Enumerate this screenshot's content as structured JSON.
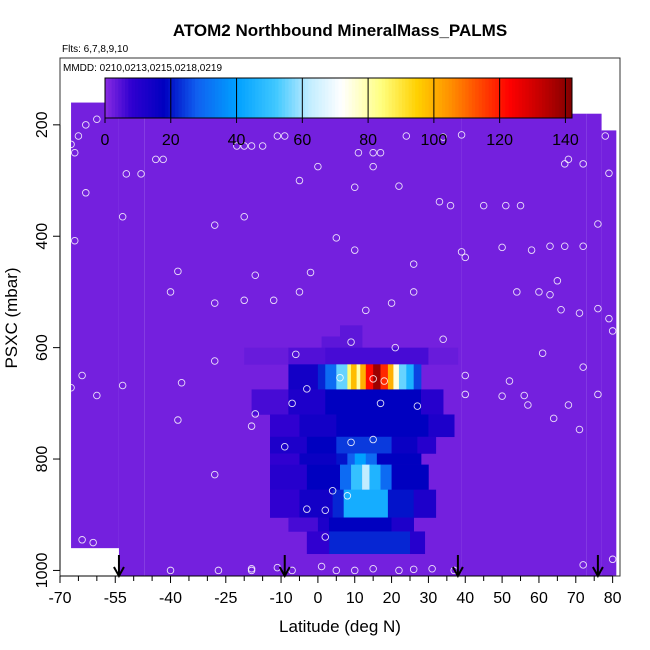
{
  "chart_data": {
    "type": "heatmap",
    "title": "ATOM2 Northbound MineralMass_PALMS",
    "subtitle_flights": "Flts: 6,7,8,9,10",
    "subtitle_dates": "MMDD: 0210,0213,0215,0218,0219",
    "xlabel": "Latitude (deg N)",
    "ylabel": "PSXC (mbar)",
    "xlim": [
      -70,
      82
    ],
    "ylim": [
      1010,
      80
    ],
    "x_ticks": [
      -70,
      -55,
      -40,
      -25,
      -10,
      0,
      10,
      20,
      30,
      40,
      50,
      60,
      70,
      80
    ],
    "x_tick_labels": [
      "-70",
      "-55",
      "-40",
      "-25",
      "-10",
      "0",
      "10",
      "20",
      "30",
      "40",
      "50",
      "60",
      "70",
      "80"
    ],
    "x_minor_ticks": [
      -65,
      -60,
      -50,
      -45,
      -35,
      -30,
      -20,
      -15,
      -5,
      5,
      15,
      25,
      35,
      45,
      55,
      65,
      75
    ],
    "y_ticks": [
      200,
      400,
      600,
      800,
      1000
    ],
    "y_tick_labels": [
      "200",
      "400",
      "600",
      "800",
      "1000"
    ],
    "colorbar": {
      "min": 0,
      "max": 142,
      "ticks": [
        0,
        20,
        40,
        60,
        80,
        100,
        120,
        140
      ],
      "tick_labels": [
        "0",
        "20",
        "40",
        "60",
        "80",
        "100",
        "120",
        "140"
      ],
      "stops": [
        {
          "v": 0,
          "c": "#8a2be2"
        },
        {
          "v": 8,
          "c": "#3000d0"
        },
        {
          "v": 18,
          "c": "#0000c0"
        },
        {
          "v": 28,
          "c": "#1060f0"
        },
        {
          "v": 40,
          "c": "#00a0ff"
        },
        {
          "v": 52,
          "c": "#40c8ff"
        },
        {
          "v": 62,
          "c": "#c0ecff"
        },
        {
          "v": 72,
          "c": "#ffffff"
        },
        {
          "v": 84,
          "c": "#ffff80"
        },
        {
          "v": 95,
          "c": "#ffd000"
        },
        {
          "v": 105,
          "c": "#ff9000"
        },
        {
          "v": 115,
          "c": "#ff4000"
        },
        {
          "v": 123,
          "c": "#ff0000"
        },
        {
          "v": 133,
          "c": "#c00000"
        },
        {
          "v": 142,
          "c": "#800000"
        }
      ]
    },
    "background_value": 2,
    "coverage": [
      {
        "x0": -67,
        "x1": -54,
        "y0": 160,
        "y1": 960
      },
      {
        "x0": -54,
        "x1": -47,
        "y0": 160,
        "y1": 1010
      },
      {
        "x0": -47,
        "x1": 39,
        "y0": 160,
        "y1": 1010
      },
      {
        "x0": 39,
        "x1": 73,
        "y0": 180,
        "y1": 1010
      },
      {
        "x0": 73,
        "x1": 77,
        "y0": 180,
        "y1": 1010
      },
      {
        "x0": 77,
        "x1": 81,
        "y0": 210,
        "y1": 1010
      }
    ],
    "cells": [
      {
        "x0": 6,
        "x1": 12,
        "y0": 560,
        "y1": 600,
        "v": 4
      },
      {
        "x0": 1,
        "x1": 6,
        "y0": 580,
        "y1": 600,
        "v": 4
      },
      {
        "x0": -20,
        "x1": -8,
        "y0": 600,
        "y1": 630,
        "v": 3
      },
      {
        "x0": -8,
        "x1": 2,
        "y0": 600,
        "y1": 630,
        "v": 5
      },
      {
        "x0": 2,
        "x1": 30,
        "y0": 600,
        "y1": 630,
        "v": 6
      },
      {
        "x0": 30,
        "x1": 38,
        "y0": 600,
        "y1": 630,
        "v": 3
      },
      {
        "x0": -8,
        "x1": 0,
        "y0": 630,
        "y1": 675,
        "v": 14
      },
      {
        "x0": 0,
        "x1": 2,
        "y0": 630,
        "y1": 675,
        "v": 22
      },
      {
        "x0": 2,
        "x1": 5,
        "y0": 630,
        "y1": 675,
        "v": 30
      },
      {
        "x0": 5,
        "x1": 8,
        "y0": 630,
        "y1": 675,
        "v": 55
      },
      {
        "x0": 8,
        "x1": 9,
        "y0": 630,
        "y1": 675,
        "v": 85
      },
      {
        "x0": 9,
        "x1": 10.5,
        "y0": 630,
        "y1": 675,
        "v": 98
      },
      {
        "x0": 10.5,
        "x1": 11.5,
        "y0": 630,
        "y1": 675,
        "v": 80
      },
      {
        "x0": 11.5,
        "x1": 13,
        "y0": 630,
        "y1": 675,
        "v": 100
      },
      {
        "x0": 13,
        "x1": 15,
        "y0": 630,
        "y1": 675,
        "v": 122
      },
      {
        "x0": 15,
        "x1": 17,
        "y0": 630,
        "y1": 675,
        "v": 138
      },
      {
        "x0": 17,
        "x1": 19,
        "y0": 630,
        "y1": 675,
        "v": 118
      },
      {
        "x0": 19,
        "x1": 20.5,
        "y0": 630,
        "y1": 675,
        "v": 100
      },
      {
        "x0": 20.5,
        "x1": 22,
        "y0": 630,
        "y1": 675,
        "v": 75
      },
      {
        "x0": 22,
        "x1": 24,
        "y0": 630,
        "y1": 675,
        "v": 55
      },
      {
        "x0": 24,
        "x1": 26,
        "y0": 630,
        "y1": 675,
        "v": 45
      },
      {
        "x0": 26,
        "x1": 28,
        "y0": 630,
        "y1": 675,
        "v": 25
      },
      {
        "x0": -18,
        "x1": -8,
        "y0": 675,
        "y1": 720,
        "v": 6
      },
      {
        "x0": -8,
        "x1": 2,
        "y0": 675,
        "y1": 720,
        "v": 12
      },
      {
        "x0": 2,
        "x1": 28,
        "y0": 675,
        "y1": 720,
        "v": 18
      },
      {
        "x0": 28,
        "x1": 34,
        "y0": 675,
        "y1": 720,
        "v": 10
      },
      {
        "x0": -13,
        "x1": -5,
        "y0": 720,
        "y1": 760,
        "v": 8
      },
      {
        "x0": -5,
        "x1": 5,
        "y0": 720,
        "y1": 760,
        "v": 14
      },
      {
        "x0": 5,
        "x1": 30,
        "y0": 720,
        "y1": 760,
        "v": 18
      },
      {
        "x0": 30,
        "x1": 37,
        "y0": 720,
        "y1": 760,
        "v": 12
      },
      {
        "x0": -13,
        "x1": -3,
        "y0": 760,
        "y1": 790,
        "v": 12
      },
      {
        "x0": -3,
        "x1": 5,
        "y0": 760,
        "y1": 790,
        "v": 18
      },
      {
        "x0": 5,
        "x1": 20,
        "y0": 760,
        "y1": 790,
        "v": 24
      },
      {
        "x0": 20,
        "x1": 27,
        "y0": 760,
        "y1": 790,
        "v": 16
      },
      {
        "x0": 27,
        "x1": 32,
        "y0": 760,
        "y1": 790,
        "v": 10
      },
      {
        "x0": -13,
        "x1": -5,
        "y0": 790,
        "y1": 810,
        "v": 8
      },
      {
        "x0": -5,
        "x1": 5,
        "y0": 790,
        "y1": 810,
        "v": 16
      },
      {
        "x0": 5,
        "x1": 8,
        "y0": 790,
        "y1": 810,
        "v": 20
      },
      {
        "x0": 8,
        "x1": 10,
        "y0": 790,
        "y1": 810,
        "v": 28
      },
      {
        "x0": 10,
        "x1": 13,
        "y0": 790,
        "y1": 810,
        "v": 40
      },
      {
        "x0": 13,
        "x1": 16,
        "y0": 790,
        "y1": 810,
        "v": 30
      },
      {
        "x0": 16,
        "x1": 28,
        "y0": 790,
        "y1": 810,
        "v": 18
      },
      {
        "x0": -13,
        "x1": -3,
        "y0": 810,
        "y1": 855,
        "v": 10
      },
      {
        "x0": -3,
        "x1": 6,
        "y0": 810,
        "y1": 855,
        "v": 18
      },
      {
        "x0": 6,
        "x1": 9,
        "y0": 810,
        "y1": 855,
        "v": 30
      },
      {
        "x0": 9,
        "x1": 12,
        "y0": 810,
        "y1": 855,
        "v": 50
      },
      {
        "x0": 12,
        "x1": 14,
        "y0": 810,
        "y1": 855,
        "v": 62
      },
      {
        "x0": 14,
        "x1": 17,
        "y0": 810,
        "y1": 855,
        "v": 46
      },
      {
        "x0": 17,
        "x1": 20,
        "y0": 810,
        "y1": 855,
        "v": 30
      },
      {
        "x0": 20,
        "x1": 30,
        "y0": 810,
        "y1": 855,
        "v": 18
      },
      {
        "x0": -13,
        "x1": -5,
        "y0": 855,
        "y1": 905,
        "v": 8
      },
      {
        "x0": -5,
        "x1": 4,
        "y0": 855,
        "y1": 905,
        "v": 14
      },
      {
        "x0": 4,
        "x1": 7,
        "y0": 855,
        "y1": 905,
        "v": 22
      },
      {
        "x0": 7,
        "x1": 19,
        "y0": 855,
        "y1": 905,
        "v": 44
      },
      {
        "x0": 19,
        "x1": 26,
        "y0": 855,
        "y1": 905,
        "v": 20
      },
      {
        "x0": 26,
        "x1": 32,
        "y0": 855,
        "y1": 905,
        "v": 12
      },
      {
        "x0": -8,
        "x1": 0,
        "y0": 905,
        "y1": 930,
        "v": 6
      },
      {
        "x0": 0,
        "x1": 3,
        "y0": 905,
        "y1": 930,
        "v": 12
      },
      {
        "x0": 3,
        "x1": 20,
        "y0": 905,
        "y1": 930,
        "v": 18
      },
      {
        "x0": 20,
        "x1": 26,
        "y0": 905,
        "y1": 930,
        "v": 12
      },
      {
        "x0": 3,
        "x1": 25,
        "y0": 930,
        "y1": 970,
        "v": 22
      },
      {
        "x0": -3,
        "x1": 3,
        "y0": 930,
        "y1": 970,
        "v": 8
      },
      {
        "x0": 25,
        "x1": 29,
        "y0": 930,
        "y1": 970,
        "v": 10
      }
    ],
    "points": [
      {
        "x": -60,
        "y": 190
      },
      {
        "x": -63,
        "y": 200
      },
      {
        "x": -65,
        "y": 220
      },
      {
        "x": -67,
        "y": 235
      },
      {
        "x": -66,
        "y": 250
      },
      {
        "x": -52,
        "y": 288
      },
      {
        "x": -48,
        "y": 288
      },
      {
        "x": -44,
        "y": 262
      },
      {
        "x": -42,
        "y": 262
      },
      {
        "x": -63,
        "y": 322
      },
      {
        "x": -53,
        "y": 365
      },
      {
        "x": -66,
        "y": 408
      },
      {
        "x": -38,
        "y": 463
      },
      {
        "x": -40,
        "y": 500
      },
      {
        "x": -28,
        "y": 520
      },
      {
        "x": -22,
        "y": 238
      },
      {
        "x": -20,
        "y": 238
      },
      {
        "x": -18,
        "y": 238
      },
      {
        "x": -15,
        "y": 238
      },
      {
        "x": -11,
        "y": 220
      },
      {
        "x": -9,
        "y": 220
      },
      {
        "x": -28,
        "y": 380
      },
      {
        "x": -20,
        "y": 365
      },
      {
        "x": -17,
        "y": 470
      },
      {
        "x": -20,
        "y": 515
      },
      {
        "x": -12,
        "y": 515
      },
      {
        "x": -5,
        "y": 500
      },
      {
        "x": -2,
        "y": 465
      },
      {
        "x": -5,
        "y": 300
      },
      {
        "x": 0,
        "y": 275
      },
      {
        "x": 5,
        "y": 403
      },
      {
        "x": 10,
        "y": 312
      },
      {
        "x": 11,
        "y": 250
      },
      {
        "x": 15,
        "y": 250
      },
      {
        "x": 17,
        "y": 250
      },
      {
        "x": 15,
        "y": 275
      },
      {
        "x": 10,
        "y": 425
      },
      {
        "x": 13,
        "y": 533
      },
      {
        "x": 9,
        "y": 590
      },
      {
        "x": 20,
        "y": 520
      },
      {
        "x": 26,
        "y": 500
      },
      {
        "x": 26,
        "y": 450
      },
      {
        "x": 22,
        "y": 310
      },
      {
        "x": 24,
        "y": 220
      },
      {
        "x": 34,
        "y": 222
      },
      {
        "x": 39,
        "y": 218
      },
      {
        "x": 33,
        "y": 338
      },
      {
        "x": 36,
        "y": 345
      },
      {
        "x": 39,
        "y": 428
      },
      {
        "x": 40,
        "y": 438
      },
      {
        "x": 45,
        "y": 345
      },
      {
        "x": 51,
        "y": 345
      },
      {
        "x": 55,
        "y": 345
      },
      {
        "x": 50,
        "y": 420
      },
      {
        "x": 58,
        "y": 425
      },
      {
        "x": 54,
        "y": 500
      },
      {
        "x": 60,
        "y": 500
      },
      {
        "x": 63,
        "y": 505
      },
      {
        "x": 63,
        "y": 418
      },
      {
        "x": 67,
        "y": 418
      },
      {
        "x": 67,
        "y": 270
      },
      {
        "x": 72,
        "y": 270
      },
      {
        "x": 68,
        "y": 262
      },
      {
        "x": 79,
        "y": 287
      },
      {
        "x": 76,
        "y": 378
      },
      {
        "x": 72,
        "y": 418
      },
      {
        "x": 65,
        "y": 480
      },
      {
        "x": 66,
        "y": 532
      },
      {
        "x": 71,
        "y": 538
      },
      {
        "x": 76,
        "y": 530
      },
      {
        "x": 79,
        "y": 548
      },
      {
        "x": 80,
        "y": 570
      },
      {
        "x": 61,
        "y": 610
      },
      {
        "x": 72,
        "y": 635
      },
      {
        "x": 76,
        "y": 684
      },
      {
        "x": 68,
        "y": 703
      },
      {
        "x": 64,
        "y": 727
      },
      {
        "x": 71,
        "y": 747
      },
      {
        "x": 56,
        "y": 686
      },
      {
        "x": 57,
        "y": 703
      },
      {
        "x": 52,
        "y": 660
      },
      {
        "x": 50,
        "y": 687
      },
      {
        "x": 40,
        "y": 684
      },
      {
        "x": 40,
        "y": 650
      },
      {
        "x": 34,
        "y": 585
      },
      {
        "x": 21,
        "y": 600
      },
      {
        "x": 6,
        "y": 654
      },
      {
        "x": 15,
        "y": 656
      },
      {
        "x": 18,
        "y": 660
      },
      {
        "x": -6,
        "y": 612
      },
      {
        "x": -3,
        "y": 674
      },
      {
        "x": -7,
        "y": 700
      },
      {
        "x": -17,
        "y": 719
      },
      {
        "x": -18,
        "y": 741
      },
      {
        "x": 17,
        "y": 700
      },
      {
        "x": 27,
        "y": 705
      },
      {
        "x": -9,
        "y": 778
      },
      {
        "x": 9,
        "y": 770
      },
      {
        "x": 15,
        "y": 765
      },
      {
        "x": 4,
        "y": 857
      },
      {
        "x": 2,
        "y": 892
      },
      {
        "x": -3,
        "y": 890
      },
      {
        "x": 8,
        "y": 866
      },
      {
        "x": 2,
        "y": 940
      },
      {
        "x": -28,
        "y": 624
      },
      {
        "x": -37,
        "y": 663
      },
      {
        "x": -53,
        "y": 668
      },
      {
        "x": -60,
        "y": 686
      },
      {
        "x": -64,
        "y": 650
      },
      {
        "x": -67,
        "y": 672
      },
      {
        "x": -38,
        "y": 730
      },
      {
        "x": -28,
        "y": 828
      },
      {
        "x": -64,
        "y": 945
      },
      {
        "x": -61,
        "y": 950
      },
      {
        "x": -40,
        "y": 1000
      },
      {
        "x": -27,
        "y": 1000
      },
      {
        "x": -18,
        "y": 997
      },
      {
        "x": -18,
        "y": 1000
      },
      {
        "x": -11,
        "y": 995
      },
      {
        "x": -7,
        "y": 1000
      },
      {
        "x": 1,
        "y": 993
      },
      {
        "x": 5,
        "y": 1000
      },
      {
        "x": 10,
        "y": 1000
      },
      {
        "x": 15,
        "y": 997
      },
      {
        "x": 22,
        "y": 1000
      },
      {
        "x": 26,
        "y": 998
      },
      {
        "x": 31,
        "y": 997
      },
      {
        "x": 37,
        "y": 1000
      },
      {
        "x": 72,
        "y": 990
      },
      {
        "x": 80,
        "y": 980
      },
      {
        "x": 78,
        "y": 220
      }
    ],
    "arrows_x": [
      -54,
      -9,
      38,
      76
    ]
  }
}
